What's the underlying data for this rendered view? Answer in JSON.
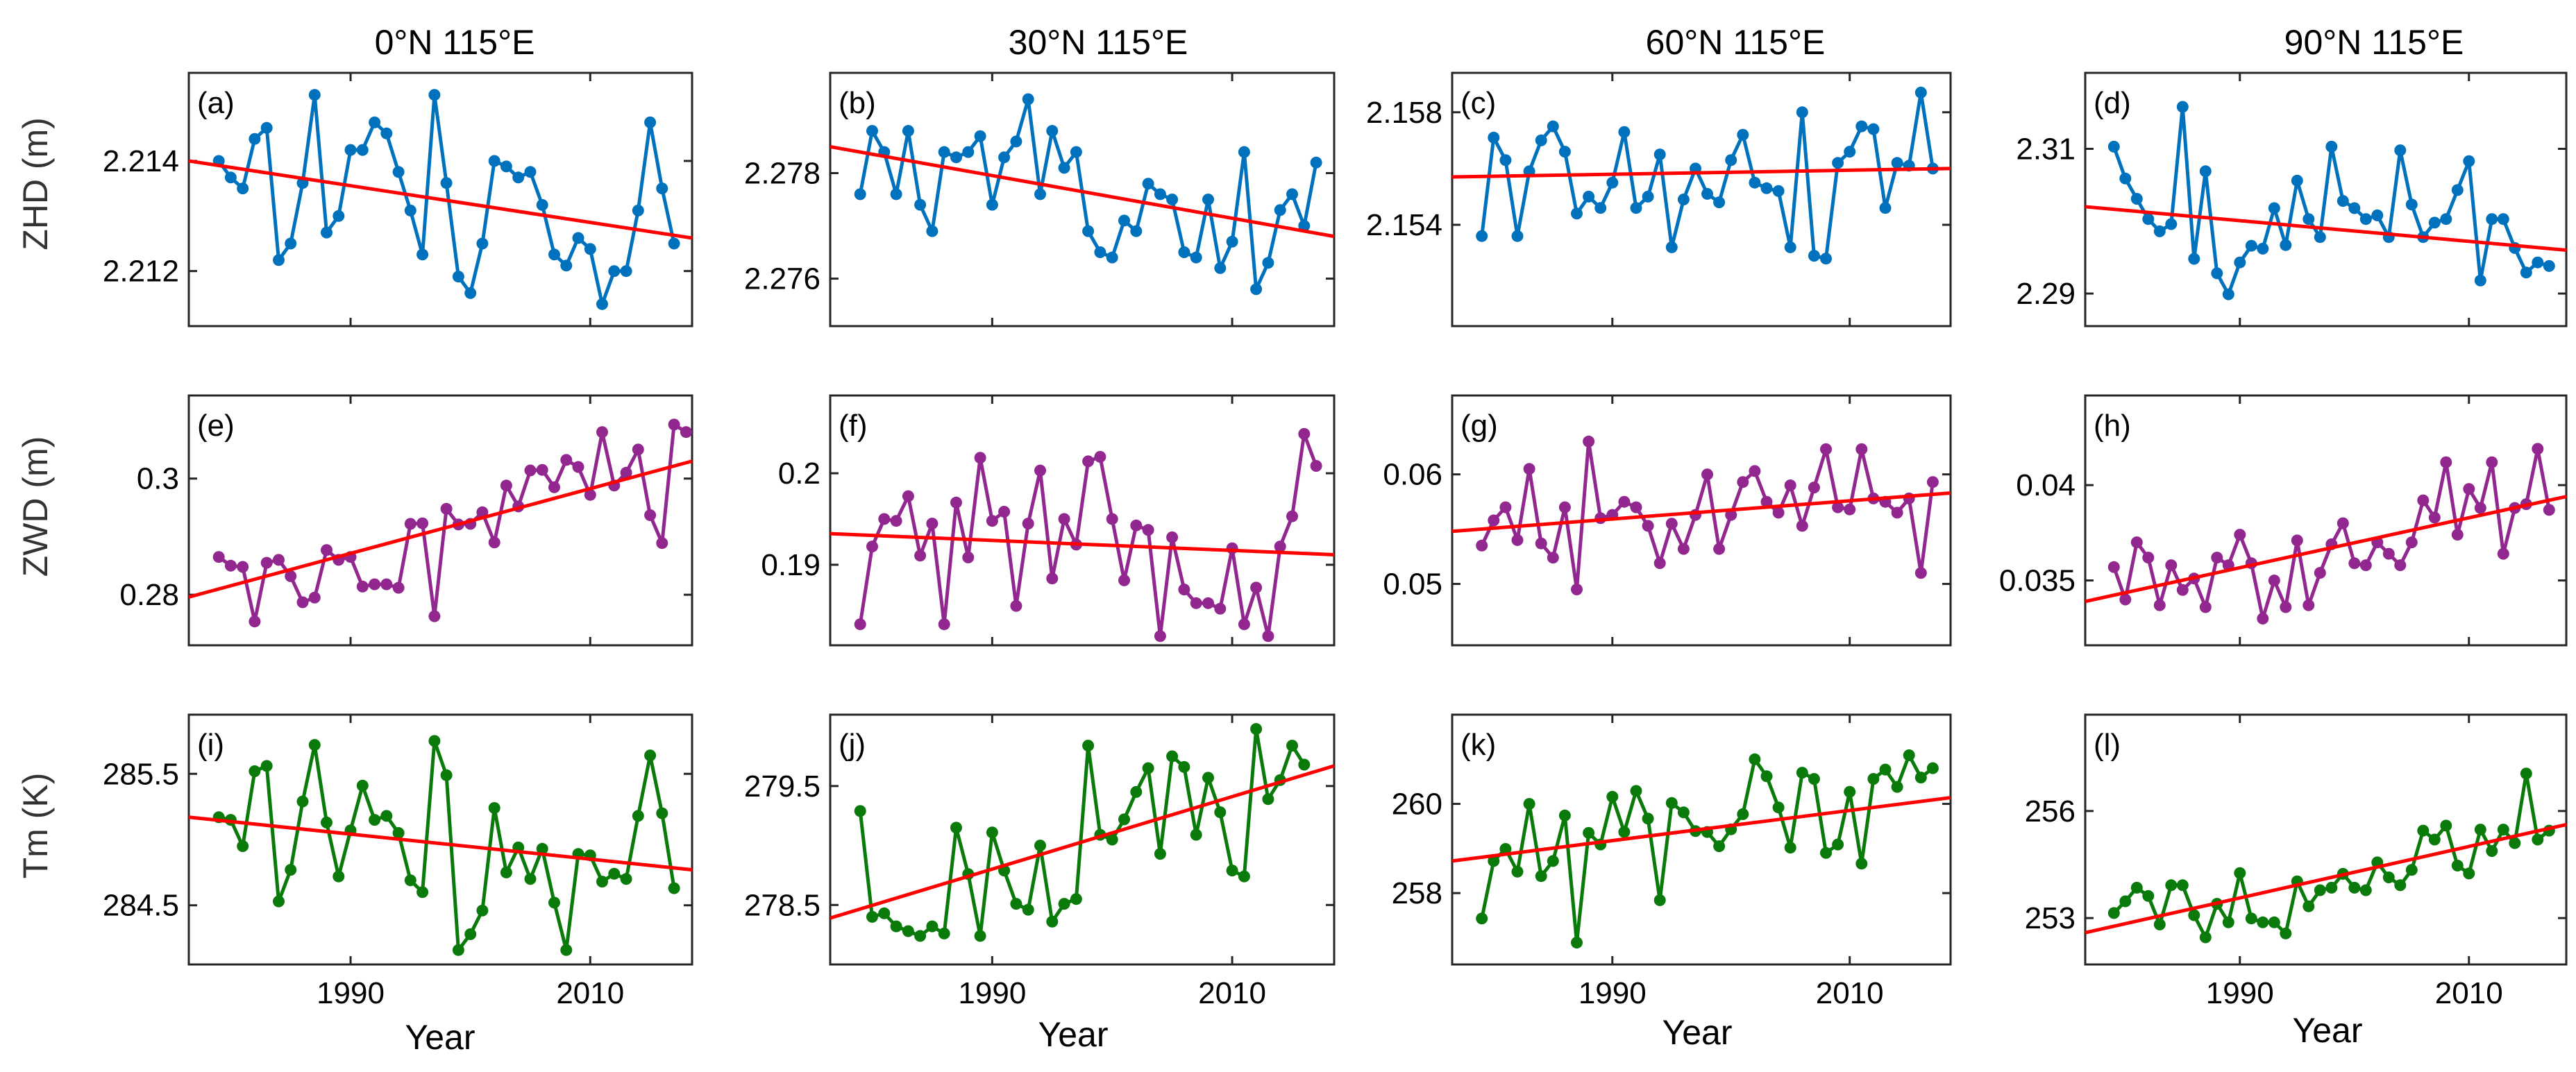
{
  "figure": {
    "columns": [
      "0°N 115°E",
      "30°N 115°E",
      "60°N 115°E",
      "90°N 115°E"
    ],
    "rows": [
      "ZHD (m)",
      "ZWD (m)",
      "Tm (K)"
    ],
    "xlabel": "Year"
  },
  "colors": {
    "zhd": "#0072BD",
    "zwd": "#92278F",
    "tm": "#0A7A0A",
    "trend": "#FF0000"
  },
  "chart_data": [
    {
      "id": "a",
      "type": "line",
      "label": "(a)",
      "row": 0,
      "col": 0,
      "ylabel": "ZHD (m)",
      "xlabel": "",
      "title": "0°N 115°E",
      "x_start": 1979,
      "xlim": [
        1976.5,
        2018.5
      ],
      "xticks": [
        1990,
        2010
      ],
      "ylim": [
        2.211,
        2.2156
      ],
      "yticks": [
        2.212,
        2.214
      ],
      "ytick_labels": [
        "2.212",
        "2.214"
      ],
      "values": [
        2.214,
        2.2137,
        2.2135,
        2.2144,
        2.2146,
        2.2122,
        2.2125,
        2.2136,
        2.2152,
        2.2127,
        2.213,
        2.2142,
        2.2142,
        2.2147,
        2.2145,
        2.2138,
        2.2131,
        2.2123,
        2.2152,
        2.2136,
        2.2119,
        2.2116,
        2.2125,
        2.214,
        2.2139,
        2.2137,
        2.2138,
        2.2132,
        2.2123,
        2.2121,
        2.2126,
        2.2124,
        2.2114,
        2.212,
        2.212,
        2.2131,
        2.2147,
        2.2135,
        2.2125
      ],
      "trend": [
        2.214,
        2.2126
      ]
    },
    {
      "id": "b",
      "type": "line",
      "label": "(b)",
      "row": 0,
      "col": 1,
      "ylabel": "",
      "xlabel": "",
      "title": "30°N 115°E",
      "x_start": 1979,
      "xlim": [
        1976.5,
        2018.5
      ],
      "xticks": [
        1990,
        2010
      ],
      "ylim": [
        2.2751,
        2.2799
      ],
      "yticks": [
        2.276,
        2.278
      ],
      "ytick_labels": [
        "2.276",
        "2.278"
      ],
      "values": [
        2.2776,
        2.2788,
        2.2784,
        2.2776,
        2.2788,
        2.2774,
        2.2769,
        2.2784,
        2.2783,
        2.2784,
        2.2787,
        2.2774,
        2.2783,
        2.2786,
        2.2794,
        2.2776,
        2.2788,
        2.2781,
        2.2784,
        2.2769,
        2.2765,
        2.2764,
        2.2771,
        2.2769,
        2.2778,
        2.2776,
        2.2775,
        2.2765,
        2.2764,
        2.2775,
        2.2762,
        2.2767,
        2.2784,
        2.2758,
        2.2763,
        2.2773,
        2.2776,
        2.277,
        2.2782
      ],
      "trend": [
        2.2785,
        2.2768
      ]
    },
    {
      "id": "c",
      "type": "line",
      "label": "(c)",
      "row": 0,
      "col": 2,
      "ylabel": "",
      "xlabel": "",
      "title": "60°N 115°E",
      "x_start": 1979,
      "xlim": [
        1976.5,
        2018.5
      ],
      "xticks": [
        1990,
        2010
      ],
      "ylim": [
        2.1504,
        2.1594
      ],
      "yticks": [
        2.154,
        2.158
      ],
      "ytick_labels": [
        "2.154",
        "2.158"
      ],
      "values": [
        2.1536,
        2.1571,
        2.1563,
        2.1536,
        2.1559,
        2.157,
        2.1575,
        2.1566,
        2.1544,
        2.155,
        2.1546,
        2.1555,
        2.1573,
        2.1546,
        2.155,
        2.1565,
        2.1532,
        2.1549,
        2.156,
        2.1551,
        2.1548,
        2.1563,
        2.1572,
        2.1555,
        2.1553,
        2.1552,
        2.1532,
        2.158,
        2.1529,
        2.1528,
        2.1562,
        2.1566,
        2.1575,
        2.1574,
        2.1546,
        2.1562,
        2.1561,
        2.1587,
        2.156
      ],
      "trend": [
        2.1557,
        2.156
      ]
    },
    {
      "id": "d",
      "type": "line",
      "label": "(d)",
      "row": 0,
      "col": 3,
      "ylabel": "",
      "xlabel": "",
      "title": "90°N 115°E",
      "x_start": 1979,
      "xlim": [
        1976.5,
        2018.5
      ],
      "xticks": [
        1990,
        2010
      ],
      "ylim": [
        2.2855,
        2.3205
      ],
      "yticks": [
        2.29,
        2.31
      ],
      "ytick_labels": [
        "2.29",
        "2.31"
      ],
      "values": [
        2.3103,
        2.3059,
        2.3031,
        2.3003,
        2.2986,
        2.2996,
        2.3158,
        2.2948,
        2.3069,
        2.2928,
        2.2899,
        2.2943,
        2.2966,
        2.2962,
        2.3018,
        2.2967,
        2.3056,
        2.3003,
        2.2978,
        2.3103,
        2.3028,
        2.3018,
        2.3003,
        2.3008,
        2.2978,
        2.3098,
        2.3023,
        2.2978,
        2.2998,
        2.3003,
        2.3043,
        2.3083,
        2.2918,
        2.3003,
        2.3003,
        2.2963,
        2.2929,
        2.2943,
        2.2938
      ],
      "trend": [
        2.302,
        2.296
      ]
    },
    {
      "id": "e",
      "type": "line",
      "label": "(e)",
      "row": 1,
      "col": 0,
      "ylabel": "ZWD (m)",
      "xlabel": "",
      "title": "",
      "x_start": 1979,
      "xlim": [
        1976.5,
        2018.5
      ],
      "xticks": [
        1990,
        2010
      ],
      "ylim": [
        0.2713,
        0.3143
      ],
      "yticks": [
        0.28,
        0.3
      ],
      "ytick_labels": [
        "0.28",
        "0.3"
      ],
      "values": [
        0.2865,
        0.285,
        0.2848,
        0.2754,
        0.2855,
        0.286,
        0.2832,
        0.2787,
        0.2795,
        0.2877,
        0.286,
        0.2865,
        0.2814,
        0.2818,
        0.2818,
        0.2812,
        0.2922,
        0.2923,
        0.2763,
        0.2948,
        0.2921,
        0.2922,
        0.2942,
        0.289,
        0.2988,
        0.2952,
        0.3014,
        0.3015,
        0.2985,
        0.3032,
        0.302,
        0.2972,
        0.308,
        0.2988,
        0.301,
        0.305,
        0.2937,
        0.2889,
        0.3093,
        0.308
      ],
      "trend": [
        0.2796,
        0.303
      ]
    },
    {
      "id": "f",
      "type": "line",
      "label": "(f)",
      "row": 1,
      "col": 1,
      "ylabel": "",
      "xlabel": "",
      "title": "",
      "x_start": 1979,
      "xlim": [
        1976.5,
        2018.5
      ],
      "xticks": [
        1990,
        2010
      ],
      "ylim": [
        0.1812,
        0.2085
      ],
      "yticks": [
        0.19,
        0.2
      ],
      "ytick_labels": [
        "0.19",
        "0.2"
      ],
      "values": [
        0.1835,
        0.192,
        0.195,
        0.1948,
        0.1975,
        0.191,
        0.1945,
        0.1835,
        0.1968,
        0.1908,
        0.2017,
        0.1948,
        0.1958,
        0.1855,
        0.1945,
        0.2003,
        0.1885,
        0.195,
        0.1922,
        0.2013,
        0.2018,
        0.195,
        0.1883,
        0.1943,
        0.1938,
        0.1822,
        0.193,
        0.1873,
        0.1858,
        0.1858,
        0.1852,
        0.1918,
        0.1835,
        0.1875,
        0.1822,
        0.192,
        0.1953,
        0.2043,
        0.2008
      ],
      "trend": [
        0.1934,
        0.1911
      ]
    },
    {
      "id": "g",
      "type": "line",
      "label": "(g)",
      "row": 1,
      "col": 2,
      "ylabel": "",
      "xlabel": "",
      "title": "",
      "x_start": 1979,
      "xlim": [
        1976.5,
        2018.5
      ],
      "xticks": [
        1990,
        2010
      ],
      "ylim": [
        0.0444,
        0.0672
      ],
      "yticks": [
        0.05,
        0.06
      ],
      "ytick_labels": [
        "0.05",
        "0.06"
      ],
      "values": [
        0.0535,
        0.0558,
        0.057,
        0.054,
        0.0605,
        0.0537,
        0.0524,
        0.057,
        0.0495,
        0.063,
        0.056,
        0.0563,
        0.0575,
        0.057,
        0.0553,
        0.0519,
        0.0555,
        0.0532,
        0.0563,
        0.06,
        0.0532,
        0.0563,
        0.0593,
        0.0603,
        0.0575,
        0.0565,
        0.059,
        0.0553,
        0.0588,
        0.0623,
        0.057,
        0.0568,
        0.0623,
        0.0578,
        0.0575,
        0.0565,
        0.0578,
        0.051,
        0.0593
      ],
      "trend": [
        0.0548,
        0.0583
      ]
    },
    {
      "id": "h",
      "type": "line",
      "label": "(h)",
      "row": 1,
      "col": 3,
      "ylabel": "",
      "xlabel": "",
      "title": "",
      "x_start": 1979,
      "xlim": [
        1976.5,
        2018.5
      ],
      "xticks": [
        1990,
        2010
      ],
      "ylim": [
        0.0316,
        0.0447
      ],
      "yticks": [
        0.035,
        0.04
      ],
      "ytick_labels": [
        "0.035",
        "0.04"
      ],
      "values": [
        0.0357,
        0.034,
        0.037,
        0.0362,
        0.0337,
        0.0358,
        0.0345,
        0.0351,
        0.0336,
        0.0362,
        0.0358,
        0.0374,
        0.0359,
        0.033,
        0.035,
        0.0336,
        0.0371,
        0.0337,
        0.0354,
        0.0369,
        0.038,
        0.0359,
        0.0358,
        0.037,
        0.0364,
        0.0358,
        0.037,
        0.0392,
        0.0383,
        0.0412,
        0.0374,
        0.0398,
        0.0388,
        0.0412,
        0.0364,
        0.0388,
        0.039,
        0.0419,
        0.0387
      ],
      "trend": [
        0.0339,
        0.0394
      ]
    },
    {
      "id": "i",
      "type": "line",
      "label": "(i)",
      "row": 2,
      "col": 0,
      "ylabel": "Tm (K)",
      "xlabel": "Year",
      "title": "",
      "x_start": 1979,
      "xlim": [
        1976.5,
        2018.5
      ],
      "xticks": [
        1990,
        2010
      ],
      "ylim": [
        284.05,
        285.95
      ],
      "yticks": [
        284.5,
        285.5
      ],
      "ytick_labels": [
        "284.5",
        "285.5"
      ],
      "values": [
        285.17,
        285.15,
        284.95,
        285.52,
        285.56,
        284.53,
        284.77,
        285.29,
        285.72,
        285.13,
        284.72,
        285.07,
        285.41,
        285.15,
        285.18,
        285.05,
        284.69,
        284.6,
        285.75,
        285.49,
        284.16,
        284.28,
        284.46,
        285.24,
        284.75,
        284.94,
        284.7,
        284.93,
        284.52,
        284.16,
        284.89,
        284.88,
        284.68,
        284.74,
        284.7,
        285.18,
        285.64,
        285.2,
        284.63
      ],
      "trend": [
        285.17,
        284.77
      ]
    },
    {
      "id": "j",
      "type": "line",
      "label": "(j)",
      "row": 2,
      "col": 1,
      "ylabel": "",
      "xlabel": "Year",
      "title": "",
      "x_start": 1979,
      "xlim": [
        1976.5,
        2018.5
      ],
      "xticks": [
        1990,
        2010
      ],
      "ylim": [
        278.0,
        280.1
      ],
      "yticks": [
        278.5,
        279.5
      ],
      "ytick_labels": [
        "278.5",
        "279.5"
      ],
      "values": [
        279.29,
        278.4,
        278.43,
        278.32,
        278.28,
        278.24,
        278.32,
        278.26,
        279.15,
        278.76,
        278.24,
        279.11,
        278.79,
        278.51,
        278.46,
        279.0,
        278.36,
        278.51,
        278.55,
        279.84,
        279.09,
        279.05,
        279.22,
        279.45,
        279.65,
        278.93,
        279.75,
        279.66,
        279.09,
        279.57,
        279.28,
        278.79,
        278.74,
        279.98,
        279.39,
        279.55,
        279.84,
        279.68
      ],
      "trend": [
        278.39,
        279.67
      ]
    },
    {
      "id": "k",
      "type": "line",
      "label": "(k)",
      "row": 2,
      "col": 2,
      "ylabel": "",
      "xlabel": "Year",
      "title": "",
      "x_start": 1979,
      "xlim": [
        1976.5,
        2018.5
      ],
      "xticks": [
        1990,
        2010
      ],
      "ylim": [
        256.4,
        262.0
      ],
      "yticks": [
        258,
        260
      ],
      "ytick_labels": [
        "258",
        "260"
      ],
      "values": [
        257.43,
        258.72,
        258.99,
        258.48,
        260.0,
        258.38,
        258.72,
        259.74,
        256.89,
        259.35,
        259.09,
        260.16,
        259.37,
        260.29,
        259.67,
        257.84,
        260.02,
        259.81,
        259.39,
        259.37,
        259.05,
        259.43,
        259.77,
        261.0,
        260.62,
        259.92,
        259.02,
        260.7,
        260.56,
        258.9,
        259.09,
        260.27,
        258.66,
        260.56,
        260.77,
        260.38,
        261.09,
        260.59,
        260.8
      ],
      "trend": [
        258.72,
        260.14
      ]
    },
    {
      "id": "l",
      "type": "line",
      "label": "(l)",
      "row": 2,
      "col": 3,
      "ylabel": "",
      "xlabel": "Year",
      "title": "",
      "x_start": 1979,
      "xlim": [
        1976.5,
        2018.5
      ],
      "xticks": [
        1990,
        2010
      ],
      "ylim": [
        251.7,
        258.7
      ],
      "yticks": [
        253,
        256
      ],
      "ytick_labels": [
        "253",
        "256"
      ],
      "values": [
        253.14,
        253.47,
        253.85,
        253.62,
        252.82,
        253.92,
        253.92,
        253.08,
        252.46,
        253.4,
        252.88,
        254.26,
        252.99,
        252.88,
        252.88,
        252.57,
        254.03,
        253.33,
        253.78,
        253.85,
        254.24,
        253.85,
        253.78,
        254.56,
        254.14,
        253.92,
        254.35,
        255.45,
        255.2,
        255.59,
        254.47,
        254.25,
        255.48,
        254.88,
        255.48,
        255.1,
        257.05,
        255.2,
        255.45
      ],
      "trend": [
        252.59,
        255.62
      ]
    }
  ]
}
